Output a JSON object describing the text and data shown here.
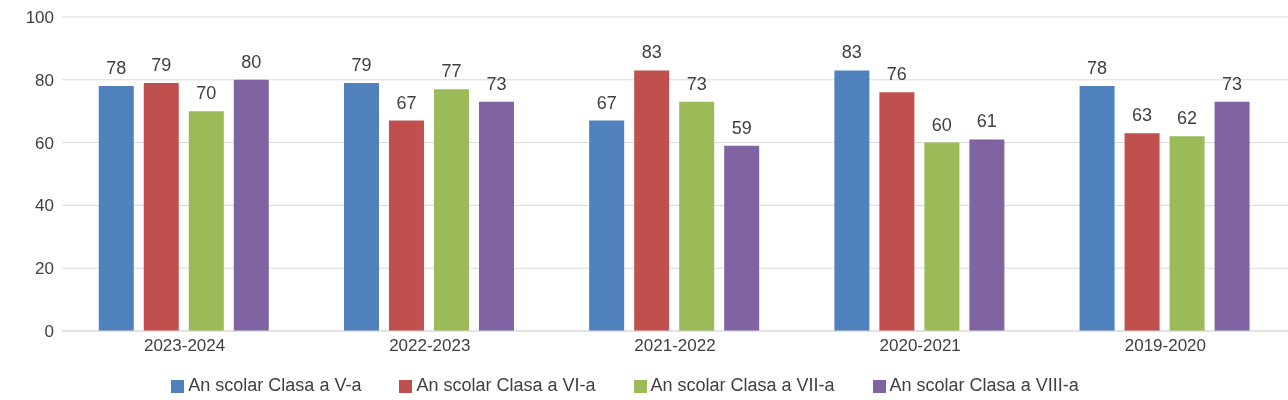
{
  "chart_data": {
    "type": "bar",
    "categories": [
      "2023-2024",
      "2022-2023",
      "2021-2022",
      "2020-2021",
      "2019-2020"
    ],
    "series": [
      {
        "name": "An scolar Clasa a V-a",
        "color": "#4f81bd",
        "values": [
          78,
          79,
          67,
          83,
          78
        ]
      },
      {
        "name": "An scolar Clasa a VI-a",
        "color": "#c0504d",
        "values": [
          79,
          67,
          83,
          76,
          63
        ]
      },
      {
        "name": "An scolar Clasa a VII-a",
        "color": "#9bbb59",
        "values": [
          70,
          77,
          73,
          60,
          62
        ]
      },
      {
        "name": "An scolar Clasa a VIII-a",
        "color": "#8064a2",
        "values": [
          80,
          73,
          59,
          61,
          73
        ]
      }
    ],
    "ylim": [
      0,
      100
    ],
    "yticks": [
      0,
      20,
      40,
      60,
      80,
      100
    ],
    "grid": "y",
    "legend": "bottom",
    "data_labels": true
  }
}
